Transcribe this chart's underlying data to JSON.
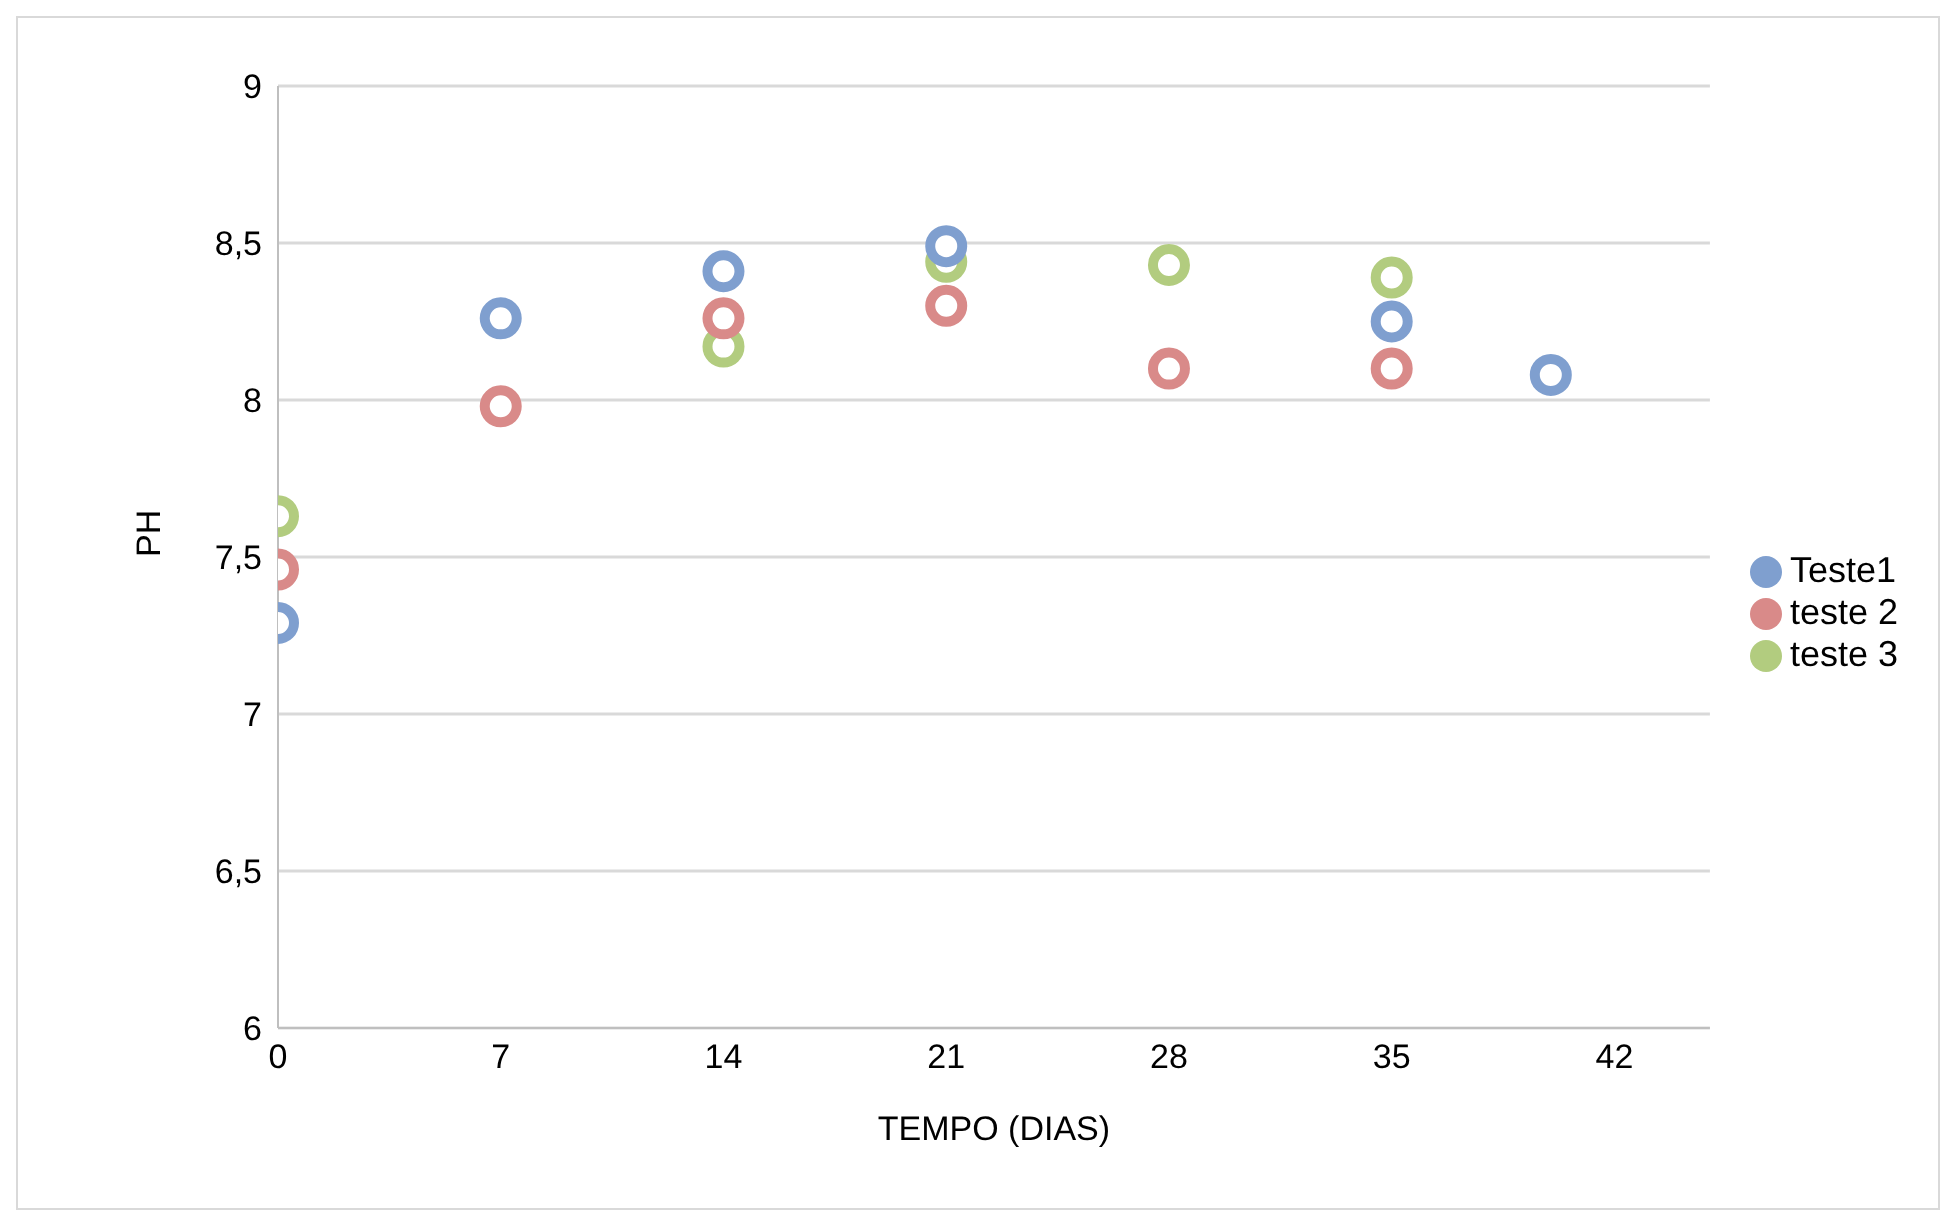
{
  "chart_data": {
    "type": "scatter",
    "xlabel": "TEMPO (DIAS)",
    "ylabel": "PH",
    "xlim": [
      0,
      45
    ],
    "xticks": [
      0,
      7,
      14,
      21,
      28,
      35,
      42
    ],
    "ylim": [
      6,
      9
    ],
    "yticks": [
      6,
      {
        "value": 6.5,
        "label": "6,5"
      },
      7,
      {
        "value": 7.5,
        "label": "7,5"
      },
      8,
      {
        "value": 8.5,
        "label": "8,5"
      },
      9
    ],
    "grid": "y",
    "legend": "right",
    "marker": "circle",
    "series": [
      {
        "name": "Teste1",
        "color": "#7f9fcf",
        "x": [
          0,
          7,
          14,
          21,
          35,
          40
        ],
        "values": [
          7.29,
          8.26,
          8.41,
          8.49,
          8.25,
          8.08
        ]
      },
      {
        "name": "teste 2",
        "color": "#d98a89",
        "x": [
          0,
          7,
          14,
          21,
          28,
          35
        ],
        "values": [
          7.46,
          7.98,
          8.26,
          8.3,
          8.1,
          8.1
        ]
      },
      {
        "name": "teste 3",
        "color": "#b2cc7f",
        "x": [
          0,
          14,
          21,
          28,
          35
        ],
        "values": [
          7.63,
          8.17,
          8.44,
          8.43,
          8.39
        ]
      }
    ]
  }
}
